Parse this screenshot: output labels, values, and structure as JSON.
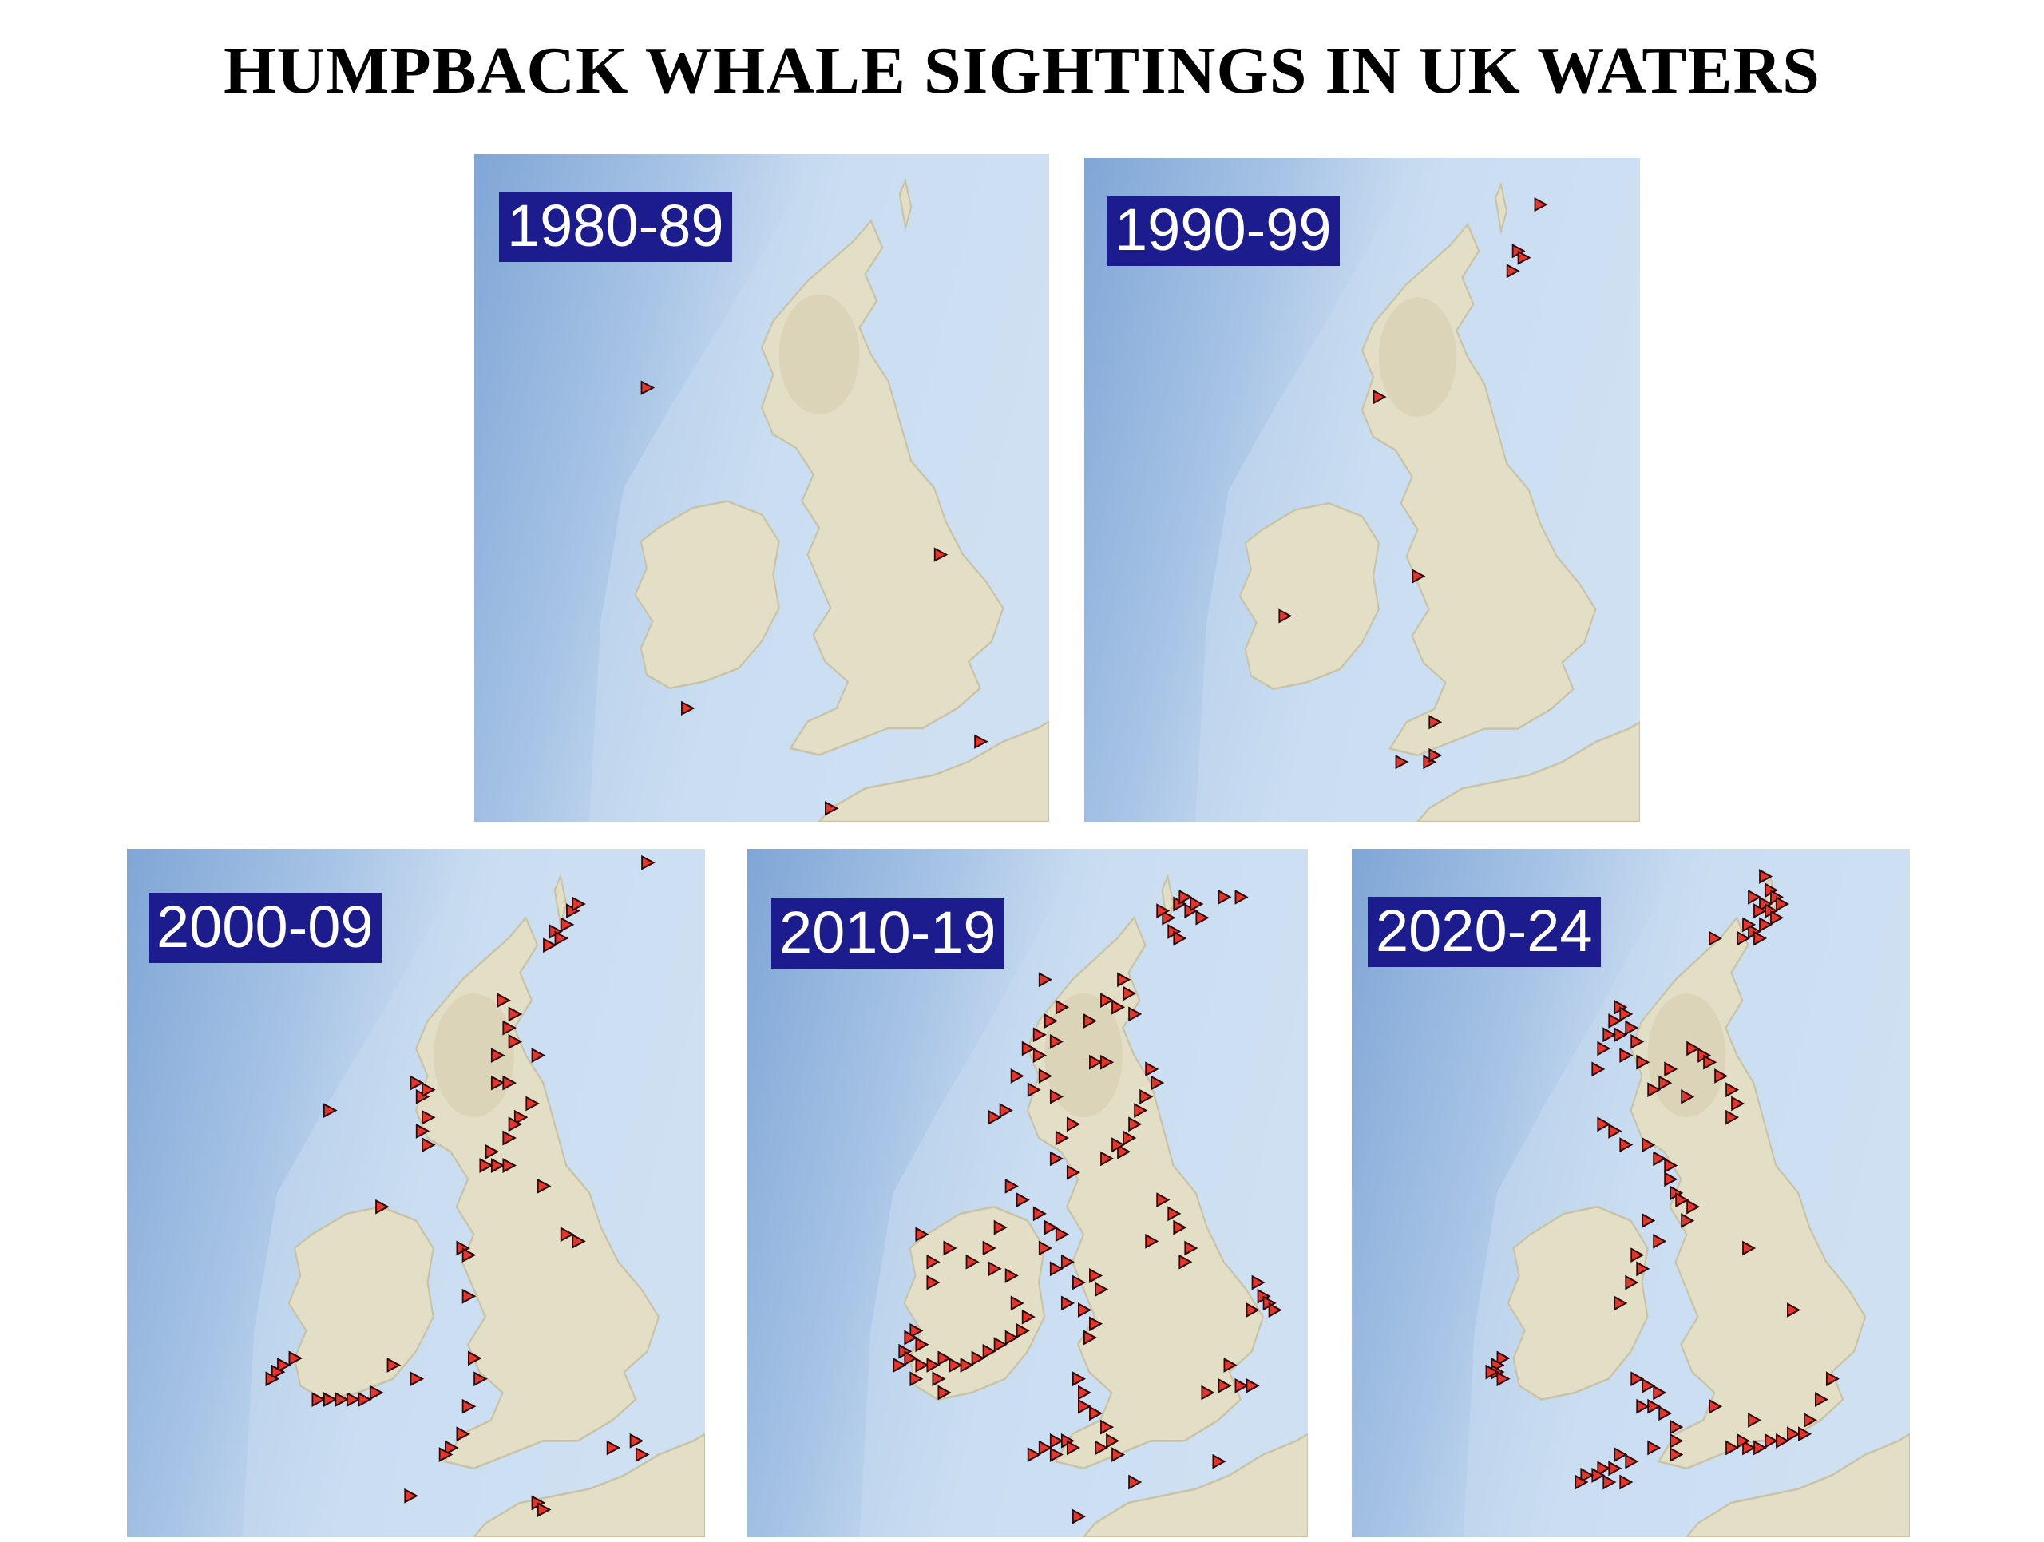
{
  "title": "HUMPBACK WHALE SIGHTINGS IN UK WATERS",
  "colors": {
    "ocean_deep": "#7fa6d6",
    "ocean_shelf": "#cfe1f3",
    "land": "#e3dfc7",
    "land_highland": "#d8cfb3",
    "label_bg": "#1c1c8f",
    "label_text": "#ffffff",
    "marker_fill": "#e8352b",
    "marker_stroke": "#2a0a0a"
  },
  "marker_icon": "red-triangle-marker",
  "panels": [
    {
      "id": "1980-89",
      "label": "1980-89",
      "sightings": [
        [
          0.3,
          0.35
        ],
        [
          0.81,
          0.6
        ],
        [
          0.37,
          0.83
        ],
        [
          0.88,
          0.88
        ],
        [
          0.62,
          0.98
        ]
      ]
    },
    {
      "id": "1990-99",
      "label": "1990-99",
      "sightings": [
        [
          0.82,
          0.07
        ],
        [
          0.78,
          0.14
        ],
        [
          0.79,
          0.15
        ],
        [
          0.77,
          0.17
        ],
        [
          0.53,
          0.36
        ],
        [
          0.6,
          0.63
        ],
        [
          0.36,
          0.69
        ],
        [
          0.63,
          0.85
        ],
        [
          0.57,
          0.91
        ],
        [
          0.62,
          0.91
        ],
        [
          0.63,
          0.9
        ]
      ]
    },
    {
      "id": "2000-09",
      "label": "2000-09",
      "sightings": [
        [
          0.9,
          0.02
        ],
        [
          0.77,
          0.09
        ],
        [
          0.78,
          0.08
        ],
        [
          0.76,
          0.11
        ],
        [
          0.74,
          0.12
        ],
        [
          0.75,
          0.13
        ],
        [
          0.73,
          0.14
        ],
        [
          0.65,
          0.22
        ],
        [
          0.67,
          0.24
        ],
        [
          0.66,
          0.26
        ],
        [
          0.67,
          0.28
        ],
        [
          0.64,
          0.3
        ],
        [
          0.71,
          0.3
        ],
        [
          0.5,
          0.34
        ],
        [
          0.51,
          0.36
        ],
        [
          0.52,
          0.35
        ],
        [
          0.64,
          0.34
        ],
        [
          0.66,
          0.34
        ],
        [
          0.7,
          0.37
        ],
        [
          0.68,
          0.39
        ],
        [
          0.52,
          0.39
        ],
        [
          0.35,
          0.38
        ],
        [
          0.51,
          0.41
        ],
        [
          0.67,
          0.4
        ],
        [
          0.66,
          0.42
        ],
        [
          0.63,
          0.44
        ],
        [
          0.52,
          0.43
        ],
        [
          0.64,
          0.46
        ],
        [
          0.62,
          0.46
        ],
        [
          0.66,
          0.46
        ],
        [
          0.72,
          0.49
        ],
        [
          0.44,
          0.52
        ],
        [
          0.76,
          0.56
        ],
        [
          0.78,
          0.57
        ],
        [
          0.58,
          0.58
        ],
        [
          0.59,
          0.59
        ],
        [
          0.59,
          0.65
        ],
        [
          0.29,
          0.74
        ],
        [
          0.27,
          0.75
        ],
        [
          0.26,
          0.76
        ],
        [
          0.25,
          0.77
        ],
        [
          0.46,
          0.75
        ],
        [
          0.5,
          0.77
        ],
        [
          0.6,
          0.74
        ],
        [
          0.61,
          0.77
        ],
        [
          0.59,
          0.81
        ],
        [
          0.33,
          0.8
        ],
        [
          0.35,
          0.8
        ],
        [
          0.37,
          0.8
        ],
        [
          0.39,
          0.8
        ],
        [
          0.41,
          0.8
        ],
        [
          0.43,
          0.79
        ],
        [
          0.58,
          0.85
        ],
        [
          0.56,
          0.87
        ],
        [
          0.55,
          0.88
        ],
        [
          0.84,
          0.87
        ],
        [
          0.88,
          0.86
        ],
        [
          0.89,
          0.88
        ],
        [
          0.49,
          0.94
        ],
        [
          0.71,
          0.95
        ],
        [
          0.72,
          0.96
        ]
      ]
    },
    {
      "id": "2010-19",
      "label": "2010-19",
      "sightings": [
        [
          0.77,
          0.08
        ],
        [
          0.78,
          0.07
        ],
        [
          0.79,
          0.09
        ],
        [
          0.75,
          0.1
        ],
        [
          0.74,
          0.09
        ],
        [
          0.76,
          0.12
        ],
        [
          0.8,
          0.08
        ],
        [
          0.81,
          0.1
        ],
        [
          0.85,
          0.07
        ],
        [
          0.88,
          0.07
        ],
        [
          0.77,
          0.13
        ],
        [
          0.53,
          0.19
        ],
        [
          0.67,
          0.19
        ],
        [
          0.68,
          0.21
        ],
        [
          0.66,
          0.23
        ],
        [
          0.64,
          0.22
        ],
        [
          0.69,
          0.24
        ],
        [
          0.56,
          0.23
        ],
        [
          0.54,
          0.25
        ],
        [
          0.52,
          0.27
        ],
        [
          0.5,
          0.29
        ],
        [
          0.52,
          0.3
        ],
        [
          0.55,
          0.28
        ],
        [
          0.61,
          0.25
        ],
        [
          0.62,
          0.31
        ],
        [
          0.64,
          0.31
        ],
        [
          0.48,
          0.33
        ],
        [
          0.51,
          0.35
        ],
        [
          0.53,
          0.33
        ],
        [
          0.55,
          0.36
        ],
        [
          0.72,
          0.32
        ],
        [
          0.73,
          0.34
        ],
        [
          0.71,
          0.36
        ],
        [
          0.7,
          0.38
        ],
        [
          0.69,
          0.4
        ],
        [
          0.68,
          0.42
        ],
        [
          0.67,
          0.44
        ],
        [
          0.66,
          0.43
        ],
        [
          0.64,
          0.45
        ],
        [
          0.44,
          0.39
        ],
        [
          0.46,
          0.38
        ],
        [
          0.58,
          0.4
        ],
        [
          0.56,
          0.42
        ],
        [
          0.55,
          0.45
        ],
        [
          0.58,
          0.47
        ],
        [
          0.47,
          0.49
        ],
        [
          0.49,
          0.51
        ],
        [
          0.52,
          0.53
        ],
        [
          0.54,
          0.55
        ],
        [
          0.56,
          0.56
        ],
        [
          0.53,
          0.58
        ],
        [
          0.45,
          0.55
        ],
        [
          0.43,
          0.58
        ],
        [
          0.31,
          0.56
        ],
        [
          0.33,
          0.6
        ],
        [
          0.36,
          0.58
        ],
        [
          0.4,
          0.6
        ],
        [
          0.44,
          0.61
        ],
        [
          0.47,
          0.62
        ],
        [
          0.55,
          0.61
        ],
        [
          0.57,
          0.6
        ],
        [
          0.59,
          0.63
        ],
        [
          0.62,
          0.62
        ],
        [
          0.63,
          0.64
        ],
        [
          0.74,
          0.51
        ],
        [
          0.76,
          0.53
        ],
        [
          0.77,
          0.55
        ],
        [
          0.72,
          0.57
        ],
        [
          0.79,
          0.58
        ],
        [
          0.78,
          0.6
        ],
        [
          0.33,
          0.63
        ],
        [
          0.6,
          0.67
        ],
        [
          0.57,
          0.66
        ],
        [
          0.62,
          0.69
        ],
        [
          0.61,
          0.71
        ],
        [
          0.91,
          0.63
        ],
        [
          0.92,
          0.65
        ],
        [
          0.93,
          0.66
        ],
        [
          0.94,
          0.67
        ],
        [
          0.9,
          0.67
        ],
        [
          0.3,
          0.7
        ],
        [
          0.29,
          0.71
        ],
        [
          0.28,
          0.73
        ],
        [
          0.29,
          0.74
        ],
        [
          0.31,
          0.75
        ],
        [
          0.33,
          0.75
        ],
        [
          0.35,
          0.74
        ],
        [
          0.37,
          0.75
        ],
        [
          0.39,
          0.75
        ],
        [
          0.41,
          0.74
        ],
        [
          0.43,
          0.73
        ],
        [
          0.45,
          0.72
        ],
        [
          0.47,
          0.71
        ],
        [
          0.49,
          0.7
        ],
        [
          0.5,
          0.68
        ],
        [
          0.48,
          0.66
        ],
        [
          0.31,
          0.72
        ],
        [
          0.27,
          0.75
        ],
        [
          0.3,
          0.77
        ],
        [
          0.34,
          0.77
        ],
        [
          0.59,
          0.77
        ],
        [
          0.6,
          0.79
        ],
        [
          0.6,
          0.81
        ],
        [
          0.62,
          0.82
        ],
        [
          0.64,
          0.84
        ],
        [
          0.55,
          0.86
        ],
        [
          0.57,
          0.86
        ],
        [
          0.58,
          0.87
        ],
        [
          0.55,
          0.88
        ],
        [
          0.53,
          0.87
        ],
        [
          0.51,
          0.88
        ],
        [
          0.63,
          0.87
        ],
        [
          0.65,
          0.86
        ],
        [
          0.66,
          0.88
        ],
        [
          0.82,
          0.79
        ],
        [
          0.85,
          0.78
        ],
        [
          0.88,
          0.78
        ],
        [
          0.9,
          0.78
        ],
        [
          0.86,
          0.75
        ],
        [
          0.35,
          0.79
        ],
        [
          0.84,
          0.89
        ],
        [
          0.69,
          0.92
        ],
        [
          0.59,
          0.97
        ]
      ]
    },
    {
      "id": "2020-24",
      "label": "2020-24",
      "sightings": [
        [
          0.74,
          0.04
        ],
        [
          0.75,
          0.06
        ],
        [
          0.76,
          0.07
        ],
        [
          0.74,
          0.08
        ],
        [
          0.73,
          0.09
        ],
        [
          0.75,
          0.09
        ],
        [
          0.76,
          0.1
        ],
        [
          0.74,
          0.11
        ],
        [
          0.72,
          0.12
        ],
        [
          0.71,
          0.11
        ],
        [
          0.7,
          0.13
        ],
        [
          0.73,
          0.13
        ],
        [
          0.77,
          0.08
        ],
        [
          0.72,
          0.07
        ],
        [
          0.65,
          0.13
        ],
        [
          0.48,
          0.23
        ],
        [
          0.49,
          0.24
        ],
        [
          0.47,
          0.25
        ],
        [
          0.5,
          0.26
        ],
        [
          0.48,
          0.27
        ],
        [
          0.46,
          0.27
        ],
        [
          0.45,
          0.29
        ],
        [
          0.49,
          0.3
        ],
        [
          0.51,
          0.28
        ],
        [
          0.52,
          0.31
        ],
        [
          0.44,
          0.32
        ],
        [
          0.61,
          0.29
        ],
        [
          0.63,
          0.3
        ],
        [
          0.64,
          0.31
        ],
        [
          0.66,
          0.33
        ],
        [
          0.68,
          0.35
        ],
        [
          0.56,
          0.34
        ],
        [
          0.57,
          0.32
        ],
        [
          0.54,
          0.35
        ],
        [
          0.6,
          0.36
        ],
        [
          0.69,
          0.37
        ],
        [
          0.68,
          0.39
        ],
        [
          0.45,
          0.4
        ],
        [
          0.47,
          0.41
        ],
        [
          0.49,
          0.43
        ],
        [
          0.53,
          0.43
        ],
        [
          0.55,
          0.45
        ],
        [
          0.57,
          0.46
        ],
        [
          0.57,
          0.48
        ],
        [
          0.58,
          0.5
        ],
        [
          0.59,
          0.51
        ],
        [
          0.61,
          0.52
        ],
        [
          0.6,
          0.54
        ],
        [
          0.53,
          0.54
        ],
        [
          0.51,
          0.59
        ],
        [
          0.55,
          0.57
        ],
        [
          0.52,
          0.61
        ],
        [
          0.5,
          0.63
        ],
        [
          0.48,
          0.66
        ],
        [
          0.71,
          0.58
        ],
        [
          0.79,
          0.67
        ],
        [
          0.27,
          0.74
        ],
        [
          0.26,
          0.75
        ],
        [
          0.26,
          0.76
        ],
        [
          0.27,
          0.77
        ],
        [
          0.25,
          0.76
        ],
        [
          0.51,
          0.77
        ],
        [
          0.53,
          0.78
        ],
        [
          0.55,
          0.79
        ],
        [
          0.54,
          0.81
        ],
        [
          0.52,
          0.81
        ],
        [
          0.56,
          0.82
        ],
        [
          0.58,
          0.84
        ],
        [
          0.65,
          0.81
        ],
        [
          0.54,
          0.87
        ],
        [
          0.58,
          0.86
        ],
        [
          0.58,
          0.88
        ],
        [
          0.48,
          0.88
        ],
        [
          0.5,
          0.89
        ],
        [
          0.47,
          0.9
        ],
        [
          0.45,
          0.9
        ],
        [
          0.44,
          0.91
        ],
        [
          0.42,
          0.91
        ],
        [
          0.41,
          0.92
        ],
        [
          0.49,
          0.92
        ],
        [
          0.46,
          0.92
        ],
        [
          0.84,
          0.8
        ],
        [
          0.82,
          0.83
        ],
        [
          0.81,
          0.85
        ],
        [
          0.79,
          0.85
        ],
        [
          0.77,
          0.86
        ],
        [
          0.75,
          0.86
        ],
        [
          0.73,
          0.87
        ],
        [
          0.71,
          0.87
        ],
        [
          0.7,
          0.86
        ],
        [
          0.68,
          0.87
        ],
        [
          0.72,
          0.83
        ],
        [
          0.86,
          0.77
        ]
      ]
    }
  ]
}
